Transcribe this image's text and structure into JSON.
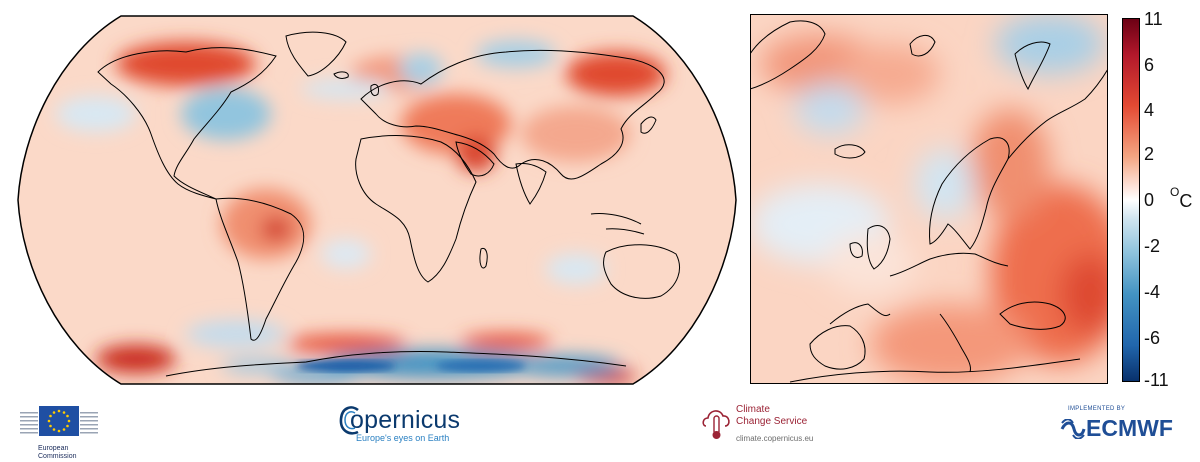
{
  "maps": {
    "world": {
      "projection": "Robinson",
      "region": "Global"
    },
    "europe": {
      "region": "Europe"
    }
  },
  "colorbar": {
    "ticks": [
      "11",
      "6",
      "4",
      "2",
      "0",
      "-2",
      "-4",
      "-6",
      "-11"
    ],
    "unit_main": "C",
    "unit_sup": "O",
    "colors": [
      "#6b0014",
      "#b2182b",
      "#e34a33",
      "#f4a582",
      "#fde0d6",
      "#ffffff",
      "#d1e5f0",
      "#92c5de",
      "#4393c3",
      "#2166ac",
      "#08306b"
    ]
  },
  "logos": {
    "ec": {
      "line1": "European",
      "line2": "Commission"
    },
    "copernicus": {
      "word": "opernicus",
      "tagline": "Europe's eyes on Earth"
    },
    "c3s": {
      "line1": "Climate",
      "line2": "Change Service",
      "url": "climate.copernicus.eu"
    },
    "ecmwf": {
      "implemented": "IMPLEMENTED BY",
      "word": "ECMWF"
    }
  }
}
